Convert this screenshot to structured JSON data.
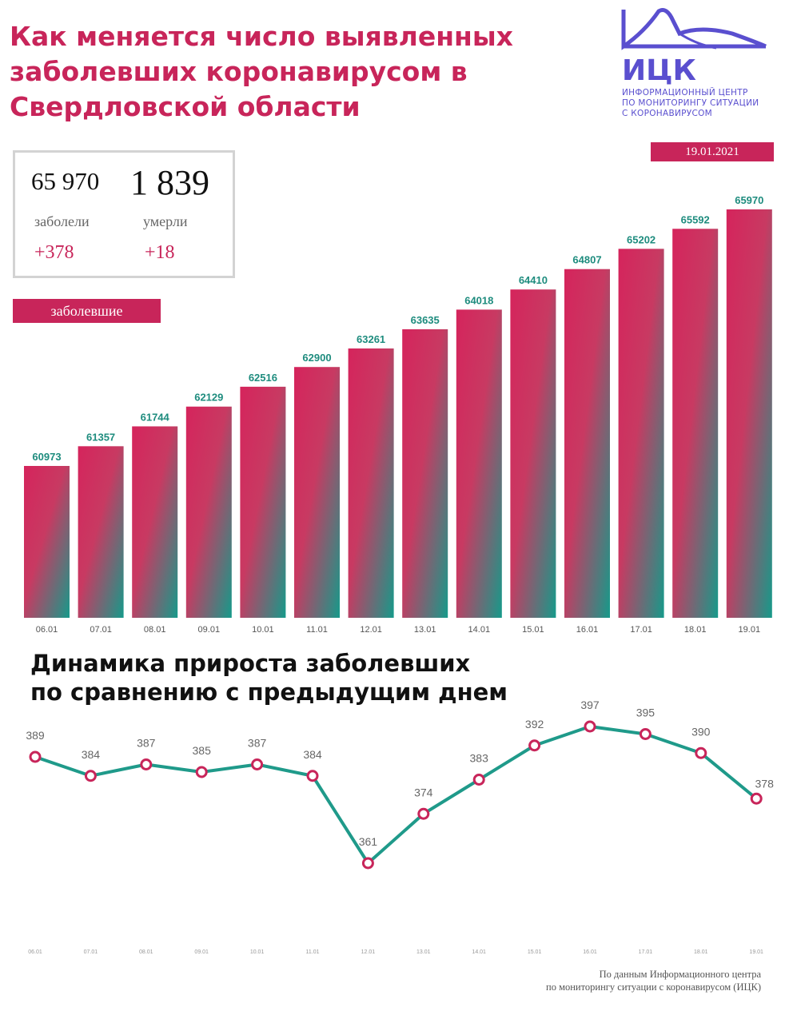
{
  "header": {
    "title_lines": [
      "Как меняется число выявленных",
      "заболевших коронавирусом в",
      "Свердловской области"
    ]
  },
  "logo": {
    "text": "ИЦК",
    "caption_lines": [
      "ИНФОРМАЦИОННЫЙ ЦЕНТР",
      "ПО МОНИТОРИНГУ СИТУАЦИИ",
      "С КОРОНАВИРУСОМ"
    ],
    "color": "#5a4fcf"
  },
  "date": "19.01.2021",
  "stats": {
    "cases_total": "65 970",
    "cases_label": "заболели",
    "cases_delta": "+378",
    "deaths_total": "1 839",
    "deaths_label": "умерли",
    "deaths_delta": "+18"
  },
  "section_label": "заболевшие",
  "subtitle_lines": [
    "Динамика прироста заболевших",
    "по сравнению с предыдущим днем"
  ],
  "source_lines": [
    "По данным Информационного центра",
    "по мониторингу ситуации с коронавирусом (ИЦК)"
  ],
  "colors": {
    "accent": "#c8255a",
    "teal": "#1f9a8a",
    "bar_top": "#d5245c",
    "bar_bottom": "#169a8a",
    "value_label": "#1e8c7e"
  },
  "chart_data": [
    {
      "type": "bar",
      "categories": [
        "06.01",
        "07.01",
        "08.01",
        "09.01",
        "10.01",
        "11.01",
        "12.01",
        "13.01",
        "14.01",
        "15.01",
        "16.01",
        "17.01",
        "18.01",
        "19.01"
      ],
      "values": [
        60973,
        61357,
        61744,
        62129,
        62516,
        62900,
        63261,
        63635,
        64018,
        64410,
        64807,
        65202,
        65592,
        65970
      ],
      "title": "",
      "xlabel": "",
      "ylabel": "",
      "data_labels": true
    },
    {
      "type": "line",
      "categories": [
        "06.01",
        "07.01",
        "08.01",
        "09.01",
        "10.01",
        "11.01",
        "12.01",
        "13.01",
        "14.01",
        "15.01",
        "16.01",
        "17.01",
        "18.01",
        "19.01"
      ],
      "values": [
        389,
        384,
        387,
        385,
        387,
        384,
        361,
        374,
        383,
        392,
        397,
        395,
        390,
        378
      ],
      "title": "",
      "xlabel": "",
      "ylabel": "",
      "data_labels": true
    }
  ]
}
